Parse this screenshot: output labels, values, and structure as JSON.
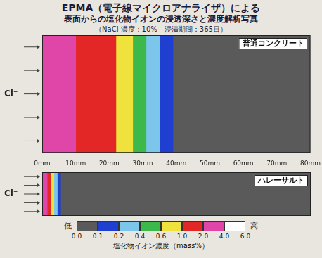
{
  "title": [
    "EPMA（電子線マイクロアナライザ）による",
    "表面からの塩化物イオンの浸透深さと濃度解析写真",
    "（NaCl 濃度：10%　浸漬期間：365日）"
  ],
  "chart_data": [
    {
      "type": "heatmap",
      "title": "普通コンクリート",
      "side_label": "Cl⁻",
      "xlim": [
        0,
        80
      ],
      "xticks": [
        {
          "value": 0,
          "label": "0mm"
        },
        {
          "value": 10,
          "label": "10mm"
        },
        {
          "value": 20,
          "label": "20mm"
        },
        {
          "value": 30,
          "label": "30mm"
        },
        {
          "value": 40,
          "label": "40mm"
        },
        {
          "value": 50,
          "label": "50mm"
        },
        {
          "value": 60,
          "label": "60mm"
        },
        {
          "value": 70,
          "label": "70mm"
        },
        {
          "value": 80,
          "label": "80mm"
        }
      ],
      "bins": [
        0,
        4,
        10,
        16,
        22,
        27,
        31,
        35,
        39,
        80
      ],
      "values": [
        3.5,
        2.5,
        1.5,
        1.2,
        0.8,
        0.5,
        0.3,
        0.15,
        0.05
      ]
    },
    {
      "type": "heatmap",
      "title": "ハレーサルト",
      "side_label": "Cl⁻",
      "xlim": [
        0,
        80
      ],
      "tick_labels": false,
      "bins": [
        0,
        1.5,
        2.5,
        3.5,
        4.5,
        5.5,
        80
      ],
      "values": [
        3.0,
        1.5,
        0.8,
        0.3,
        0.15,
        0.05
      ]
    }
  ],
  "colorbar": {
    "label": "塩化物イオン濃度（mass%）",
    "low_label": "低",
    "high_label": "高",
    "ticks": [
      {
        "value": 0,
        "label": "0.0"
      },
      0.1,
      0.2,
      0.4,
      0.6,
      {
        "value": 1,
        "label": "1.0"
      },
      {
        "value": 2,
        "label": "2.0"
      },
      {
        "value": 4,
        "label": "4.0"
      },
      {
        "value": 6,
        "label": "6.0"
      }
    ],
    "colors": [
      "#5a5a5a",
      "#1f3fd0",
      "#7cc6ec",
      "#3cb94a",
      "#f0e23c",
      "#e32626",
      "#e046a8",
      "#ffffff"
    ]
  }
}
